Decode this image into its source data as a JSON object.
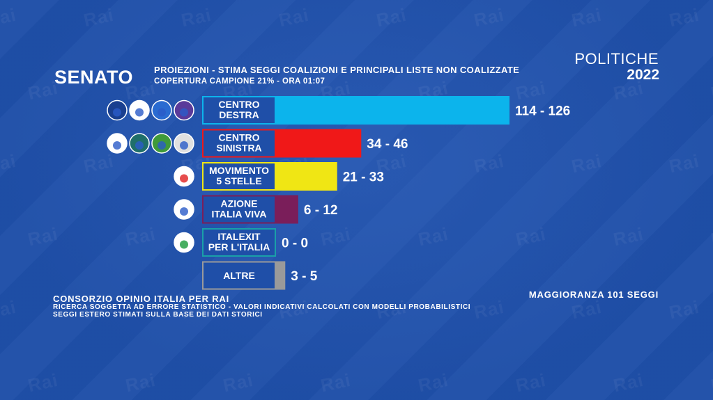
{
  "header": {
    "chamber": "SENATO",
    "subtitle": "PROIEZIONI - STIMA SEGGI COALIZIONI E PRINCIPALI LISTE NON COALIZZATE",
    "coverage": "COPERTURA CAMPIONE 21% - ORA 01:07",
    "election": "POLITICHE",
    "year": "2022"
  },
  "footer": {
    "source": "CONSORZIO OPINIO ITALIA PER RAI",
    "note1": "RICERCA SOGGETTA AD ERRORE STATISTICO - VALORI INDICATIVI CALCOLATI CON MODELLI PROBABILISTICI",
    "note2": "SEGGI ESTERO STIMATI SULLA BASE DEI DATI STORICI",
    "majority": "MAGGIORANZA 101 SEGGI"
  },
  "watermark": "Rai",
  "chart_data": {
    "type": "bar",
    "orientation": "horizontal",
    "categories": [
      [
        "CENTRO",
        "DESTRA"
      ],
      [
        "CENTRO",
        "SINISTRA"
      ],
      [
        "MOVIMENTO",
        "5 STELLE"
      ],
      [
        "AZIONE",
        "ITALIA VIVA"
      ],
      [
        "ITALEXIT",
        "PER L'ITALIA"
      ],
      [
        "ALTRE"
      ]
    ],
    "series": [
      {
        "values": [
          126,
          46,
          33,
          12,
          0,
          5
        ],
        "range_labels": [
          "114 - 126",
          "34 - 46",
          "21 - 33",
          "6 - 12",
          "0 - 0",
          "3 - 5"
        ],
        "colors": [
          "#0cb4ec",
          "#f01818",
          "#f0e614",
          "#7a1e5a",
          "#1f4fa8",
          "#9a9a9a"
        ]
      }
    ],
    "label_border_colors": [
      "#0cb4ec",
      "#f01818",
      "#f0e614",
      "#7a1e5a",
      "#1aa0a8",
      "#9a9a9a"
    ],
    "logos_per_row": [
      4,
      4,
      1,
      1,
      1,
      0
    ],
    "xlim": [
      0,
      126
    ],
    "grid": false,
    "legend": "none"
  }
}
